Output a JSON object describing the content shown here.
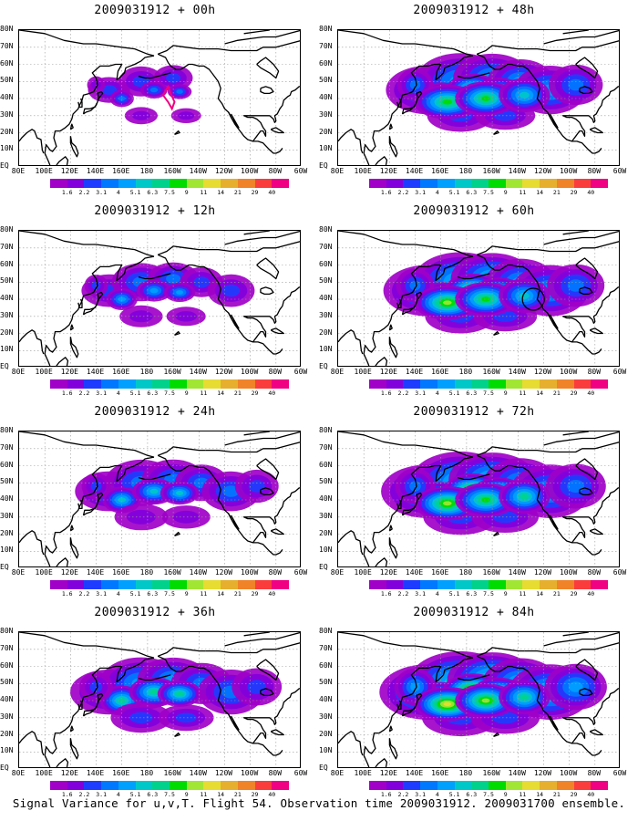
{
  "panels": [
    {
      "id": "p00",
      "title": "2009031912 + 00h",
      "spread": 0.15,
      "intensity": 0.55
    },
    {
      "id": "p12",
      "title": "2009031912 + 12h",
      "spread": 0.35,
      "intensity": 0.65
    },
    {
      "id": "p24",
      "title": "2009031912 + 24h",
      "spread": 0.55,
      "intensity": 0.7
    },
    {
      "id": "p36",
      "title": "2009031912 + 36h",
      "spread": 0.7,
      "intensity": 0.78
    },
    {
      "id": "p48",
      "title": "2009031912 + 48h",
      "spread": 0.8,
      "intensity": 0.82
    },
    {
      "id": "p60",
      "title": "2009031912 + 60h",
      "spread": 0.88,
      "intensity": 0.88
    },
    {
      "id": "p72",
      "title": "2009031912 + 72h",
      "spread": 0.95,
      "intensity": 0.93
    },
    {
      "id": "p84",
      "title": "2009031912 + 84h",
      "spread": 1.0,
      "intensity": 1.0
    }
  ],
  "lat_labels": [
    "80N",
    "70N",
    "60N",
    "50N",
    "40N",
    "30N",
    "20N",
    "10N",
    "EQ"
  ],
  "lon_labels": [
    "80E",
    "100E",
    "120E",
    "140E",
    "160E",
    "180",
    "160W",
    "140W",
    "120W",
    "100W",
    "80W",
    "60W"
  ],
  "colorbar": {
    "labels": [
      "1.6",
      "2.2",
      "3.1",
      "4",
      "5.1",
      "6.3",
      "7.5",
      "9",
      "11",
      "14",
      "21",
      "29",
      "40"
    ],
    "colors": [
      "#a000c8",
      "#8200dc",
      "#1e3cff",
      "#0078ff",
      "#00a0ff",
      "#00c8c8",
      "#00d28c",
      "#00dc00",
      "#a0e632",
      "#e6dc32",
      "#e6af2d",
      "#f08228",
      "#fa3c3c",
      "#f00082"
    ]
  },
  "caption": "Signal Variance for u,v,T. Flight 54. Observation time 2009031912. 2009031700 ensemble.",
  "markers": {
    "p00": {
      "type": "track",
      "color": "#f00082"
    },
    "p60": {
      "type": "circle",
      "color": "#000000"
    }
  }
}
